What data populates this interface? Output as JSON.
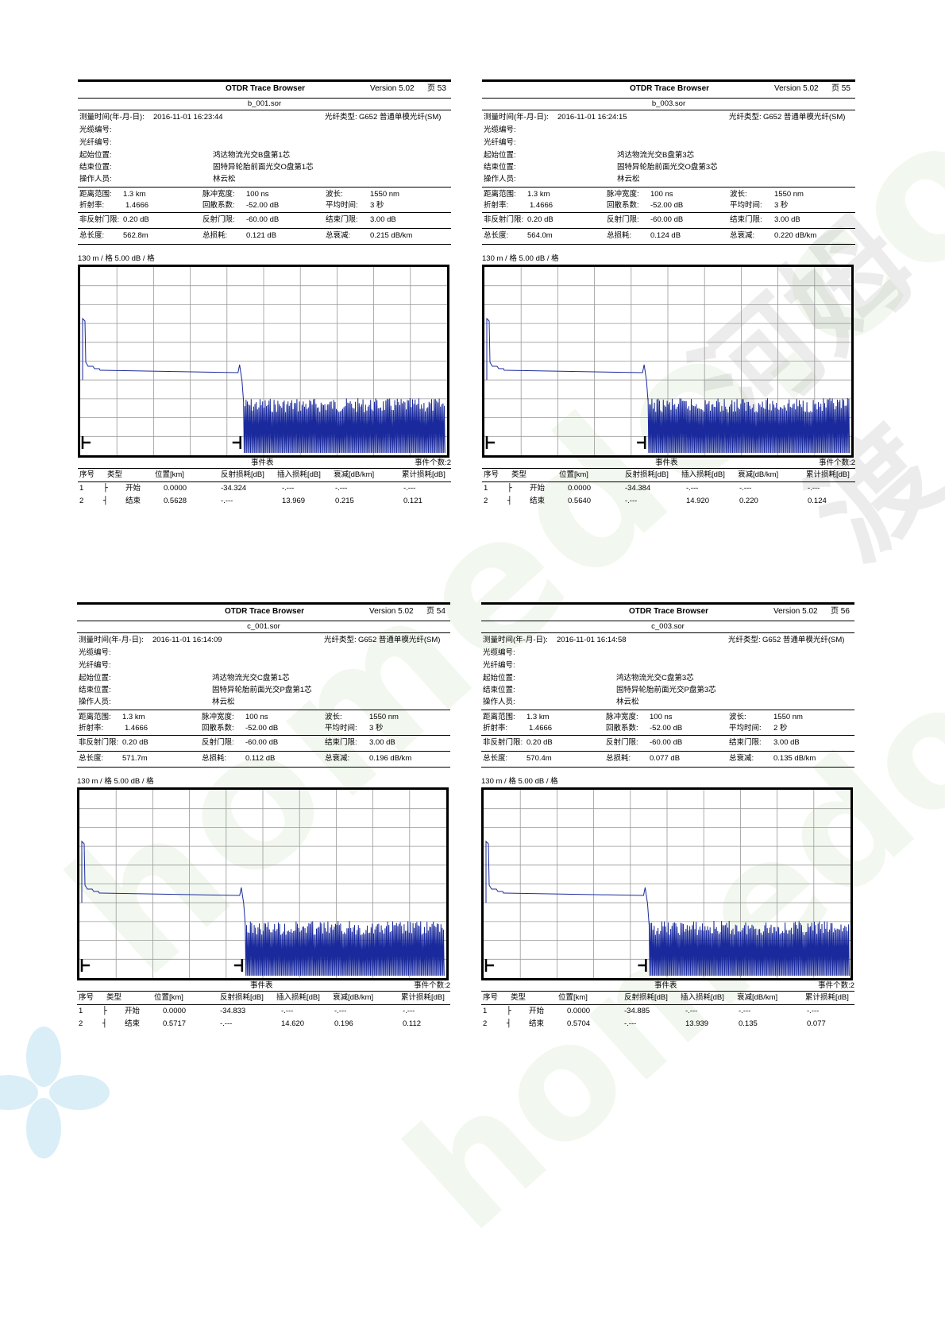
{
  "watermark": {
    "left_text": "homedo.com",
    "right_text": "homedo.com",
    "cn_text": "河姆渡"
  },
  "labels": {
    "title": "OTDR Trace Browser",
    "measure_time": "测量时间(年-月-日):",
    "fiber_type_label": "光纤类型:",
    "cable_no": "光缆编号:",
    "fiber_no": "光纤编号:",
    "start_loc": "起始位置:",
    "end_loc": "结束位置:",
    "operator": "操作人员:",
    "range": "距离范围:",
    "pulse": "脉冲宽度:",
    "wavelength": "波长:",
    "ior": "折射率:",
    "backscatter": "回散系数:",
    "avg_time": "平均时间:",
    "nonrefl": "非反射门限:",
    "refl": "反射门限:",
    "end_th": "结束门限:",
    "total_len": "总长度:",
    "total_loss": "总损耗:",
    "total_att": "总衰减:",
    "scale": "130 m / 格    5.00 dB / 格",
    "event_table": "事件表",
    "col_no": "序号",
    "col_type": "类型",
    "col_pos": "位置[km]",
    "col_refl": "反射损耗[dB]",
    "col_ins": "插入损耗[dB]",
    "col_att": "衰减[dB/km]",
    "col_cum": "累计损耗[dB]"
  },
  "reports": [
    {
      "version": "Version 5.02",
      "page": "页 53",
      "file": "b_001.sor",
      "time": "2016-11-01   16:23:44",
      "fiber_type": "G652 普通单模光纤(SM)",
      "cable_no": "",
      "fiber_no": "",
      "start": "鸿达物流光交B盘第1芯",
      "end": "固特异轮胎前面光交O盘第1芯",
      "operator": "林云松",
      "range": "1.3 km",
      "pulse": "100 ns",
      "wavelength": "1550 nm",
      "ior": "1.4666",
      "backscatter": "-52.00 dB",
      "avg_time": "3 秒",
      "nonrefl": "0.20 dB",
      "refl": "-60.00 dB",
      "end_th": "3.00 dB",
      "total_len": "562.8m",
      "total_loss": "0.121 dB",
      "total_att": "0.215 dB/km",
      "event_count": "事件个数:2",
      "trace": {
        "end_km": 0.5628
      },
      "events": [
        {
          "no": "1",
          "sym": "├",
          "type": "开始",
          "pos": "0.0000",
          "refl": "-34.324",
          "ins": "-.---",
          "att": "-.---",
          "cum": "-.---"
        },
        {
          "no": "2",
          "sym": "┤",
          "type": "结束",
          "pos": "0.5628",
          "refl": "-.---",
          "ins": "13.969",
          "att": "0.215",
          "cum": "0.121"
        }
      ]
    },
    {
      "version": "Version 5.02",
      "page": "页 55",
      "file": "b_003.sor",
      "time": "2016-11-01   16:24:15",
      "fiber_type": "G652 普通单模光纤(SM)",
      "cable_no": "",
      "fiber_no": "",
      "start": "鸿达物流光交B盘第3芯",
      "end": "固特异轮胎前面光交O盘第3芯",
      "operator": "林云松",
      "range": "1.3 km",
      "pulse": "100 ns",
      "wavelength": "1550 nm",
      "ior": "1.4666",
      "backscatter": "-52.00 dB",
      "avg_time": "3 秒",
      "nonrefl": "0.20 dB",
      "refl": "-60.00 dB",
      "end_th": "3.00 dB",
      "total_len": "564.0m",
      "total_loss": "0.124 dB",
      "total_att": "0.220 dB/km",
      "event_count": "事件个数:2",
      "trace": {
        "end_km": 0.564
      },
      "events": [
        {
          "no": "1",
          "sym": "├",
          "type": "开始",
          "pos": "0.0000",
          "refl": "-34.384",
          "ins": "-.---",
          "att": "-.---",
          "cum": "-.---"
        },
        {
          "no": "2",
          "sym": "┤",
          "type": "结束",
          "pos": "0.5640",
          "refl": "-.---",
          "ins": "14.920",
          "att": "0.220",
          "cum": "0.124"
        }
      ]
    },
    {
      "version": "Version 5.02",
      "page": "页 54",
      "file": "c_001.sor",
      "time": "2016-11-01   16:14:09",
      "fiber_type": "G652 普通单模光纤(SM)",
      "cable_no": "",
      "fiber_no": "",
      "start": "鸿达物流光交C盘第1芯",
      "end": "固特异轮胎前面光交P盘第1芯",
      "operator": "林云松",
      "range": "1.3 km",
      "pulse": "100 ns",
      "wavelength": "1550 nm",
      "ior": "1.4666",
      "backscatter": "-52.00 dB",
      "avg_time": "3 秒",
      "nonrefl": "0.20 dB",
      "refl": "-60.00 dB",
      "end_th": "3.00 dB",
      "total_len": "571.7m",
      "total_loss": "0.112 dB",
      "total_att": "0.196 dB/km",
      "event_count": "事件个数:2",
      "trace": {
        "end_km": 0.5717
      },
      "events": [
        {
          "no": "1",
          "sym": "├",
          "type": "开始",
          "pos": "0.0000",
          "refl": "-34.833",
          "ins": "-.---",
          "att": "-.---",
          "cum": "-.---"
        },
        {
          "no": "2",
          "sym": "┤",
          "type": "结束",
          "pos": "0.5717",
          "refl": "-.---",
          "ins": "14.620",
          "att": "0.196",
          "cum": "0.112"
        }
      ]
    },
    {
      "version": "Version 5.02",
      "page": "页 56",
      "file": "c_003.sor",
      "time": "2016-11-01   16:14:58",
      "fiber_type": "G652 普通单模光纤(SM)",
      "cable_no": "",
      "fiber_no": "",
      "start": "鸿达物流光交C盘第3芯",
      "end": "固特异轮胎前面光交P盘第3芯",
      "operator": "林云松",
      "range": "1.3 km",
      "pulse": "100 ns",
      "wavelength": "1550 nm",
      "ior": "1.4666",
      "backscatter": "-52.00 dB",
      "avg_time": "2 秒",
      "nonrefl": "0.20 dB",
      "refl": "-60.00 dB",
      "end_th": "3.00 dB",
      "total_len": "570.4m",
      "total_loss": "0.077 dB",
      "total_att": "0.135 dB/km",
      "event_count": "事件个数:2",
      "trace": {
        "end_km": 0.5704
      },
      "events": [
        {
          "no": "1",
          "sym": "├",
          "type": "开始",
          "pos": "0.0000",
          "refl": "-34.885",
          "ins": "-.---",
          "att": "-.---",
          "cum": "-.---"
        },
        {
          "no": "2",
          "sym": "┤",
          "type": "结束",
          "pos": "0.5704",
          "refl": "-.---",
          "ins": "13.939",
          "att": "0.135",
          "cum": "0.077"
        }
      ]
    }
  ]
}
